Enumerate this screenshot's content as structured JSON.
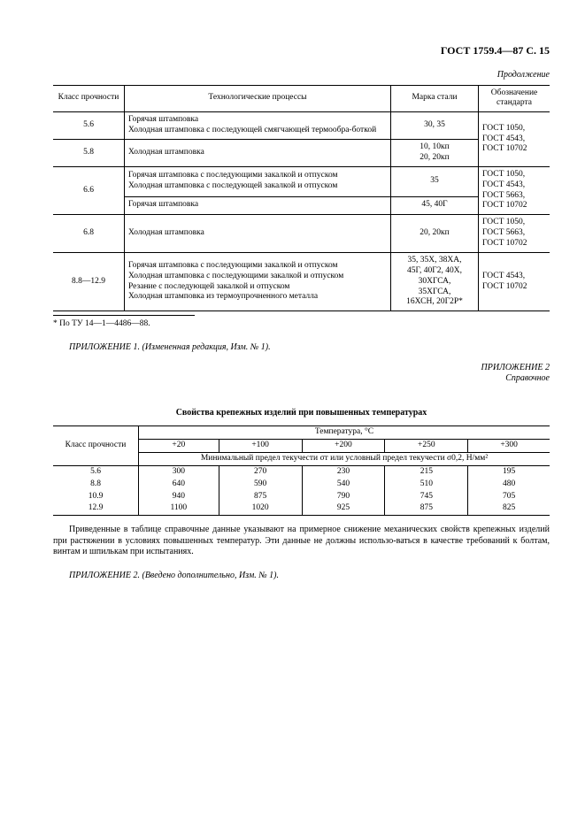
{
  "header": "ГОСТ 1759.4—87 С. 15",
  "continuation": "Продолжение",
  "table1": {
    "columns": [
      "Класс прочности",
      "Технологические процессы",
      "Марка стали",
      "Обозначение стандарта"
    ],
    "groups": [
      {
        "class_cell": "5.6",
        "rows": [
          {
            "process": "Горячая штамповка<br>Холодная штамповка с последующей смягчающей термообра-боткой",
            "mark": "30, 35",
            "std": "ГОСТ 1050,<br>ГОСТ 4543,<br>ГОСТ 10702",
            "line_top": true,
            "line_bot": true,
            "std_span": 2
          }
        ]
      },
      {
        "class_cell": "5.8",
        "rows": [
          {
            "process": "Холодная штамповка",
            "mark": "10, 10кп<br>20, 20кп",
            "line_bot": true
          }
        ]
      },
      {
        "class_cell": "6.6",
        "rows": [
          {
            "process": "Горячая штамповка с последующими закалкой и отпуском<br>Холодная штамповка с последующей закалкой и отпуском",
            "mark": "35",
            "std": "ГОСТ 1050,<br>ГОСТ 4543,<br>ГОСТ 5663,<br>ГОСТ 10702",
            "line_bot": true,
            "std_span": 2
          },
          {
            "process": "Горячая штамповка",
            "mark": "45, 40Г",
            "line_bot": true
          }
        ]
      },
      {
        "class_cell": "6.8",
        "rows": [
          {
            "process": "Холодная штамповка",
            "mark": "20, 20кп",
            "std": "ГОСТ 1050,<br>ГОСТ 5663,<br>ГОСТ 10702",
            "line_bot": true
          }
        ]
      },
      {
        "class_cell": "8.8—12.9",
        "rows": [
          {
            "process": "Горячая штамповка с последующими закалкой и отпуском<br>Холодная штамповка с последующими закалкой и отпуском<br>Резание с последующей закалкой и отпуском<br>Холодная штамповка из термоупрочненного металла",
            "mark": "35, 35Х, 38ХА,<br>45Г, 40Г2, 40Х,<br>30ХГСА,<br>35ХГСА,<br>16ХСН, 20Г2Р*",
            "std": "ГОСТ 4543,<br>ГОСТ 10702",
            "line_bot": true
          }
        ]
      }
    ]
  },
  "footnote": "* По ТУ 14—1—4486—88.",
  "app1": "ПРИЛОЖЕНИЕ 1. (Измененная редакция, Изм. № 1).",
  "app2_label": "ПРИЛОЖЕНИЕ 2",
  "app2_sub": "Справочное",
  "table2": {
    "title": "Свойства крепежных изделий при повышенных температурах",
    "col0": "Класс прочности",
    "temp_header": "Температура, °С",
    "temps": [
      "+20",
      "+100",
      "+200",
      "+250",
      "+300"
    ],
    "span_label": "Минимальный предел текучести σт или условный предел текучести σ0,2, Н/мм²",
    "rows": [
      {
        "cls": "5.6",
        "v": [
          "300",
          "270",
          "230",
          "215",
          "195"
        ]
      },
      {
        "cls": "8.8",
        "v": [
          "640",
          "590",
          "540",
          "510",
          "480"
        ]
      },
      {
        "cls": "10.9",
        "v": [
          "940",
          "875",
          "790",
          "745",
          "705"
        ]
      },
      {
        "cls": "12.9",
        "v": [
          "1100",
          "1020",
          "925",
          "875",
          "825"
        ]
      }
    ]
  },
  "note_para": "Приведенные в таблице справочные данные указывают на примерное снижение механических свойств крепежных изделий при растяжении в условиях повышенных температур. Эти данные не должны использо-ваться в качестве требований к болтам, винтам и шпилькам при испытаниях.",
  "app2_note": "ПРИЛОЖЕНИЕ 2. (Введено дополнительно, Изм. № 1)."
}
